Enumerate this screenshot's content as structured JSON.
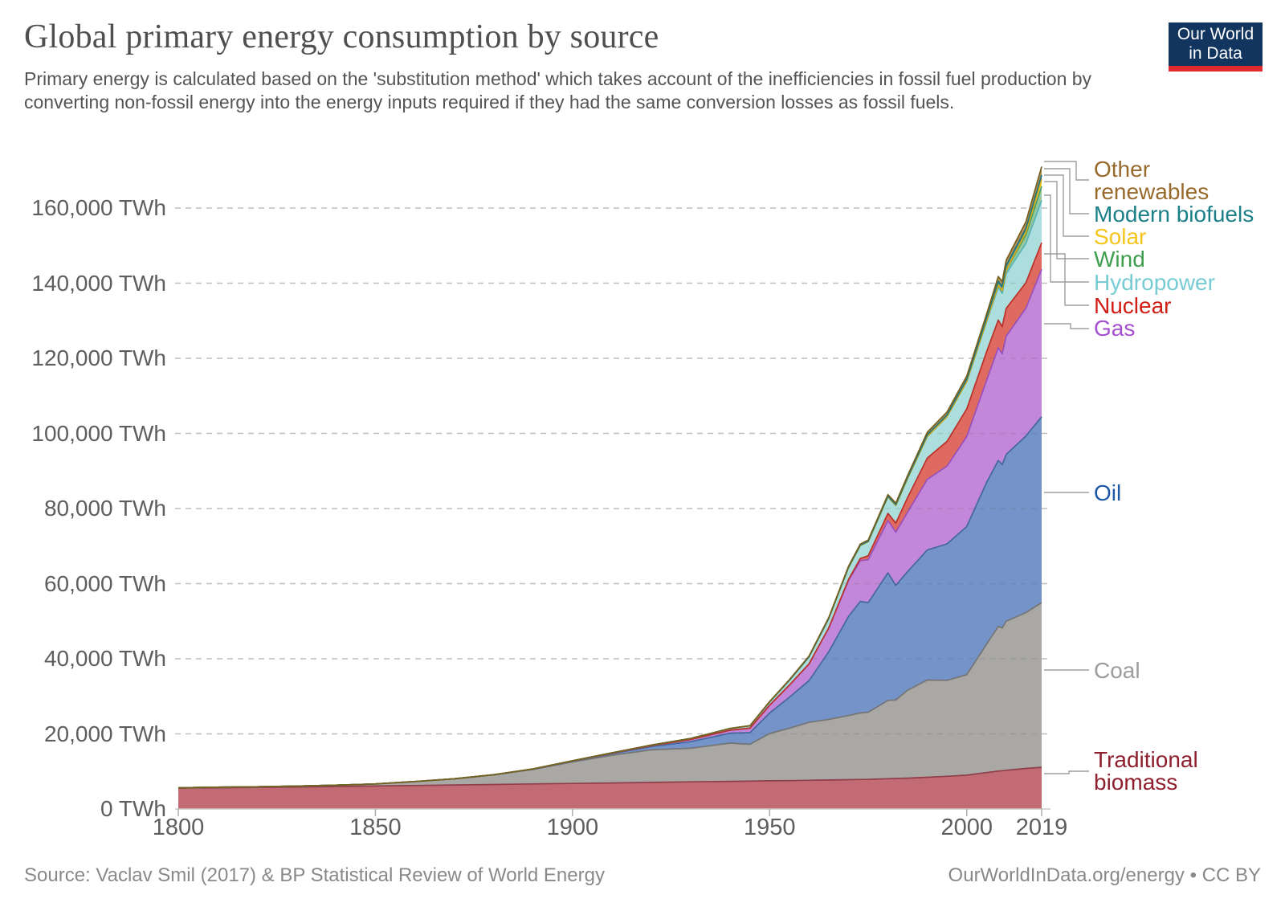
{
  "header": {
    "title": "Global primary energy consumption by source",
    "subtitle": "Primary energy is calculated based on the 'substitution method' which takes account of the inefficiencies in fossil fuel production by converting non-fossil energy into the energy inputs required if they had the same conversion losses as fossil fuels."
  },
  "logo": {
    "line1": "Our World",
    "line2": "in Data",
    "bg": "#12355f",
    "underline": "#e02b2e"
  },
  "footer": {
    "source": "Source: Vaclav Smil (2017) & BP Statistical Review of World Energy",
    "license": "OurWorldInData.org/energy • CC BY"
  },
  "y_axis": {
    "ticks": [
      {
        "value": 0,
        "label": "0 TWh"
      },
      {
        "value": 20000,
        "label": "20,000 TWh"
      },
      {
        "value": 40000,
        "label": "40,000 TWh"
      },
      {
        "value": 60000,
        "label": "60,000 TWh"
      },
      {
        "value": 80000,
        "label": "80,000 TWh"
      },
      {
        "value": 100000,
        "label": "100,000 TWh"
      },
      {
        "value": 120000,
        "label": "120,000 TWh"
      },
      {
        "value": 140000,
        "label": "140,000 TWh"
      },
      {
        "value": 160000,
        "label": "160,000 TWh"
      }
    ]
  },
  "x_axis": {
    "ticks": [
      {
        "year": 1800,
        "label": "1800"
      },
      {
        "year": 1850,
        "label": "1850"
      },
      {
        "year": 1900,
        "label": "1900"
      },
      {
        "year": 1950,
        "label": "1950"
      },
      {
        "year": 2000,
        "label": "2000"
      },
      {
        "year": 2019,
        "label": "2019"
      }
    ]
  },
  "chart_data": {
    "type": "area",
    "stacked": true,
    "title": "Global primary energy consumption by source",
    "unit": "TWh",
    "xlim": [
      1800,
      2019
    ],
    "ylim": [
      0,
      160000
    ],
    "grid": "dashed-horizontal",
    "legend_position": "right-edge-labels",
    "x": [
      1800,
      1810,
      1820,
      1830,
      1840,
      1850,
      1860,
      1870,
      1880,
      1890,
      1900,
      1910,
      1920,
      1930,
      1940,
      1945,
      1950,
      1955,
      1960,
      1965,
      1970,
      1973,
      1975,
      1980,
      1982,
      1985,
      1990,
      1995,
      2000,
      2005,
      2008,
      2009,
      2010,
      2015,
      2019
    ],
    "series": [
      {
        "id": "traditional_biomass",
        "label": "Traditional biomass",
        "fill": "#c26b74",
        "stroke": "#8f3e4b",
        "label_color": "#8e1f2e",
        "values": [
          5556,
          5650,
          5750,
          5850,
          5980,
          6110,
          6250,
          6390,
          6530,
          6670,
          6810,
          6940,
          7080,
          7220,
          7360,
          7420,
          7500,
          7560,
          7640,
          7720,
          7810,
          7870,
          7900,
          8060,
          8120,
          8220,
          8450,
          8700,
          9000,
          9700,
          10100,
          10200,
          10300,
          10800,
          11100
        ]
      },
      {
        "id": "coal",
        "label": "Coal",
        "fill": "#a9a8a5",
        "stroke": "#757575",
        "label_color": "#9c9c9c",
        "values": [
          97,
          140,
          184,
          242,
          356,
          569,
          1061,
          1642,
          2542,
          3856,
          5728,
          7377,
          8656,
          8948,
          10181,
          9800,
          12603,
          13942,
          15442,
          16140,
          17066,
          17700,
          17858,
          20858,
          20900,
          23414,
          25890,
          25576,
          26738,
          34146,
          38500,
          38000,
          39692,
          41482,
          43849
        ]
      },
      {
        "id": "oil",
        "label": "Oil",
        "fill": "#7493c9",
        "stroke": "#44679f",
        "label_color": "#1d58a6",
        "values": [
          0,
          0,
          0,
          0,
          0,
          0,
          6,
          11,
          33,
          89,
          181,
          397,
          889,
          1756,
          2653,
          3100,
          5444,
          8222,
          11096,
          17994,
          26371,
          29700,
          29177,
          33957,
          30500,
          31561,
          34620,
          36304,
          39439,
          43032,
          44200,
          43500,
          44391,
          47023,
          49470
        ]
      },
      {
        "id": "gas",
        "label": "Gas",
        "fill": "#c287d8",
        "stroke": "#9750be",
        "label_color": "#a54fd0",
        "values": [
          0,
          0,
          0,
          0,
          0,
          0,
          0,
          0,
          3,
          31,
          64,
          141,
          233,
          603,
          792,
          1200,
          2092,
          3232,
          4472,
          6304,
          9614,
          10850,
          11434,
          13915,
          14200,
          15834,
          18799,
          20722,
          23995,
          27160,
          30000,
          29500,
          31506,
          34045,
          39292
        ]
      },
      {
        "id": "nuclear",
        "label": "Nuclear",
        "fill": "#df6a60",
        "stroke": "#bb3029",
        "label_color": "#d01c14",
        "values": [
          0,
          0,
          0,
          0,
          0,
          0,
          0,
          0,
          0,
          0,
          0,
          0,
          0,
          0,
          0,
          0,
          0,
          0,
          7,
          72,
          224,
          580,
          1049,
          1903,
          2400,
          3875,
          5676,
          6590,
          7323,
          7608,
          7382,
          7233,
          7374,
          6774,
          7073
        ]
      },
      {
        "id": "hydropower",
        "label": "Hydropower",
        "fill": "#abdedc",
        "stroke": "#58b4b4",
        "label_color": "#76ccd2",
        "values": [
          0,
          0,
          0,
          0,
          0,
          0,
          0,
          0,
          10,
          29,
          47,
          97,
          139,
          250,
          472,
          650,
          875,
          1310,
          1894,
          2530,
          3185,
          3450,
          3764,
          4454,
          4700,
          5128,
          5790,
          6569,
          7252,
          7948,
          8688,
          8852,
          9253,
          10480,
          11294
        ]
      },
      {
        "id": "wind",
        "label": "Wind",
        "fill": "#95c89d",
        "stroke": "#4f9f5e",
        "label_color": "#3f9e4e",
        "values": [
          0,
          0,
          0,
          0,
          0,
          0,
          0,
          0,
          0,
          0,
          0,
          0,
          0,
          0,
          0,
          0,
          0,
          0,
          0,
          0,
          0,
          0,
          0,
          2,
          3,
          8,
          10,
          21,
          83,
          281,
          592,
          713,
          916,
          2237,
          3724
        ]
      },
      {
        "id": "solar",
        "label": "Solar",
        "fill": "#fcd84e",
        "stroke": "#dcab15",
        "label_color": "#f6c51c",
        "values": [
          0,
          0,
          0,
          0,
          0,
          0,
          0,
          0,
          0,
          0,
          0,
          0,
          0,
          0,
          0,
          0,
          0,
          0,
          0,
          0,
          0,
          0,
          0,
          0,
          0,
          1,
          1,
          2,
          3,
          11,
          34,
          54,
          86,
          671,
          1857
        ]
      },
      {
        "id": "modern_biofuels",
        "label": "Modern biofuels",
        "fill": "#4c9598",
        "stroke": "#20767c",
        "label_color": "#1b7f87",
        "values": [
          0,
          0,
          0,
          0,
          0,
          0,
          0,
          0,
          0,
          0,
          0,
          0,
          0,
          0,
          0,
          0,
          0,
          0,
          0,
          0,
          100,
          110,
          120,
          160,
          200,
          270,
          380,
          420,
          510,
          700,
          1000,
          1050,
          1180,
          1050,
          1140
        ]
      },
      {
        "id": "other_renewables",
        "label": "Other renewables",
        "fill": "#b3915d",
        "stroke": "#77601f",
        "label_color": "#976a2b",
        "values": [
          0,
          0,
          0,
          0,
          0,
          0,
          0,
          0,
          0,
          0,
          0,
          0,
          0,
          0,
          0,
          0,
          100,
          130,
          190,
          220,
          250,
          280,
          300,
          400,
          430,
          500,
          700,
          800,
          900,
          1100,
          1300,
          1350,
          1400,
          1800,
          2230
        ]
      }
    ]
  }
}
